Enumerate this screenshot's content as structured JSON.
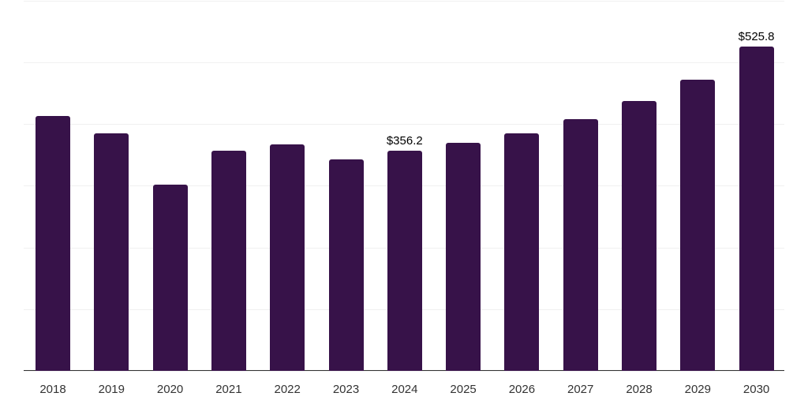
{
  "chart_data": {
    "type": "bar",
    "title": "",
    "xlabel": "",
    "ylabel": "",
    "categories": [
      "2018",
      "2019",
      "2020",
      "2021",
      "2022",
      "2023",
      "2024",
      "2025",
      "2026",
      "2027",
      "2028",
      "2029",
      "2030"
    ],
    "values": [
      413.2,
      385.1,
      301.9,
      356.9,
      367.2,
      342.8,
      356.2,
      369.7,
      385.1,
      408.1,
      437.5,
      472.1,
      525.8
    ],
    "data_labels": {
      "2024": "$356.2",
      "2030": "$525.8"
    },
    "ylim": [
      0,
      600
    ],
    "grid": true,
    "legend": null,
    "bar_color": "#371249"
  }
}
